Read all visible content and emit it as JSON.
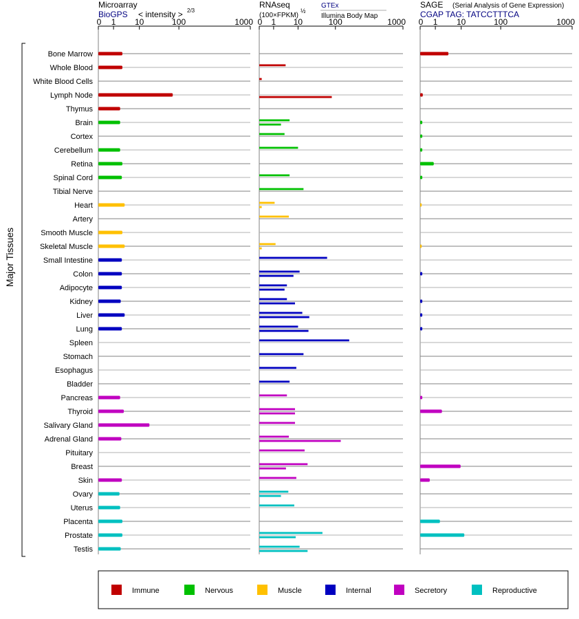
{
  "y_axis_title": "Major Tissues",
  "panels": [
    {
      "title": "Microarray",
      "subtitle": "BioGPS",
      "formula_prefix": "< intensity >",
      "formula_exp": "2/3",
      "ticks": [
        {
          "value": 0,
          "label": "0"
        },
        {
          "value": 1,
          "label": "1"
        },
        {
          "value": 10,
          "label": "10"
        },
        {
          "value": 100,
          "label": "100"
        },
        {
          "value": 1000,
          "label": "1000"
        }
      ]
    },
    {
      "title": "RNAseq",
      "subtitle": "(100×FPKM)",
      "formula_exp": "½",
      "source_1": "GTEx",
      "source_2": "Illumina Body Map",
      "ticks": [
        {
          "value": 0,
          "label": "0"
        },
        {
          "value": 1,
          "label": "1"
        },
        {
          "value": 10,
          "label": "10"
        },
        {
          "value": 100,
          "label": "100"
        },
        {
          "value": 1000,
          "label": "1000"
        }
      ]
    },
    {
      "title": "SAGE",
      "title_note": "(Serial Analysis of Gene Expression)",
      "subtitle": "CGAP TAG: TATCCTTTCA",
      "ticks": [
        {
          "value": 0,
          "label": "0"
        },
        {
          "value": 1,
          "label": "1"
        },
        {
          "value": 10,
          "label": "10"
        },
        {
          "value": 100,
          "label": "100"
        },
        {
          "value": 1000,
          "label": "1000"
        }
      ]
    }
  ],
  "colors": {
    "Immune": "#c00000",
    "Nervous": "#00c000",
    "Muscle": "#ffc000",
    "Internal": "#0000c0",
    "Secretory": "#c000c0",
    "Reproductive": "#00c0c0",
    "navy_text": "#000080",
    "grid": "#808080"
  },
  "legend": [
    {
      "label": "Immune",
      "color": "#c00000"
    },
    {
      "label": "Nervous",
      "color": "#00c000"
    },
    {
      "label": "Muscle",
      "color": "#ffc000"
    },
    {
      "label": "Internal",
      "color": "#0000c0"
    },
    {
      "label": "Secretory",
      "color": "#c000c0"
    },
    {
      "label": "Reproductive",
      "color": "#00c0c0"
    }
  ],
  "chart_data": {
    "type": "bar",
    "orientation": "horizontal",
    "x_scale": "log-like (0, 1, 10, 100, 1000)",
    "xlim": [
      0,
      1000
    ],
    "grid": true,
    "legend_position": "bottom",
    "tissues": [
      {
        "name": "Bone Marrow",
        "group": "Immune",
        "microarray": 2.2,
        "gtex": null,
        "ibm": null,
        "sage": 3.2
      },
      {
        "name": "Whole Blood",
        "group": "Immune",
        "microarray": 2.2,
        "gtex": 3.1,
        "ibm": null,
        "sage": null
      },
      {
        "name": "White Blood Cells",
        "group": "Immune",
        "microarray": null,
        "gtex": 0.03,
        "ibm": null,
        "sage": null
      },
      {
        "name": "Lymph Node",
        "group": "Immune",
        "microarray": 70,
        "gtex": null,
        "ibm": 80,
        "sage": 0.03
      },
      {
        "name": "Thymus",
        "group": "Immune",
        "microarray": 1.8,
        "gtex": null,
        "ibm": null,
        "sage": null
      },
      {
        "name": "Brain",
        "group": "Nervous",
        "microarray": 1.8,
        "gtex": 4.5,
        "ibm": 2.0,
        "sage": 0.02
      },
      {
        "name": "Cortex",
        "group": "Nervous",
        "microarray": null,
        "gtex": 2.8,
        "ibm": null,
        "sage": 0.02
      },
      {
        "name": "Cerebellum",
        "group": "Nervous",
        "microarray": 1.8,
        "gtex": 10,
        "ibm": null,
        "sage": 0.02
      },
      {
        "name": "Retina",
        "group": "Nervous",
        "microarray": 2.2,
        "gtex": null,
        "ibm": null,
        "sage": 0.8
      },
      {
        "name": "Spinal Cord",
        "group": "Nervous",
        "microarray": 2.1,
        "gtex": 4.5,
        "ibm": null,
        "sage": 0.02
      },
      {
        "name": "Tibial Nerve",
        "group": "Nervous",
        "microarray": null,
        "gtex": 14,
        "ibm": null,
        "sage": null
      },
      {
        "name": "Heart",
        "group": "Muscle",
        "microarray": 2.7,
        "gtex": 1.1,
        "ibm": 0.03,
        "sage": 0.01
      },
      {
        "name": "Artery",
        "group": "Muscle",
        "microarray": null,
        "gtex": 4.2,
        "ibm": null,
        "sage": null
      },
      {
        "name": "Smooth Muscle",
        "group": "Muscle",
        "microarray": 2.2,
        "gtex": null,
        "ibm": null,
        "sage": null
      },
      {
        "name": "Skeletal Muscle",
        "group": "Muscle",
        "microarray": 2.7,
        "gtex": 1.2,
        "ibm": 0.03,
        "sage": 0.01
      },
      {
        "name": "Small Intestine",
        "group": "Internal",
        "microarray": 2.1,
        "gtex": 60,
        "ibm": null,
        "sage": null
      },
      {
        "name": "Colon",
        "group": "Internal",
        "microarray": 2.1,
        "gtex": 11,
        "ibm": 6.5,
        "sage": 0.02
      },
      {
        "name": "Adipocyte",
        "group": "Internal",
        "microarray": 2.1,
        "gtex": 3.5,
        "ibm": 2.8,
        "sage": null
      },
      {
        "name": "Kidney",
        "group": "Internal",
        "microarray": 1.9,
        "gtex": 3.5,
        "ibm": 7.5,
        "sage": 0.02
      },
      {
        "name": "Liver",
        "group": "Internal",
        "microarray": 2.7,
        "gtex": 13,
        "ibm": 20,
        "sage": 0.02
      },
      {
        "name": "Lung",
        "group": "Internal",
        "microarray": 2.1,
        "gtex": 10,
        "ibm": 19,
        "sage": 0.02
      },
      {
        "name": "Spleen",
        "group": "Internal",
        "microarray": null,
        "gtex": 160,
        "ibm": null,
        "sage": null
      },
      {
        "name": "Stomach",
        "group": "Internal",
        "microarray": null,
        "gtex": 14,
        "ibm": null,
        "sage": null
      },
      {
        "name": "Esophagus",
        "group": "Internal",
        "microarray": null,
        "gtex": 8.5,
        "ibm": null,
        "sage": null
      },
      {
        "name": "Bladder",
        "group": "Internal",
        "microarray": null,
        "gtex": 4.5,
        "ibm": null,
        "sage": null
      },
      {
        "name": "Pancreas",
        "group": "Secretory",
        "microarray": 1.8,
        "gtex": 3.5,
        "ibm": null,
        "sage": 0.02
      },
      {
        "name": "Thyroid",
        "group": "Secretory",
        "microarray": 2.5,
        "gtex": 7.5,
        "ibm": 7.5,
        "sage": 1.8
      },
      {
        "name": "Salivary Gland",
        "group": "Secretory",
        "microarray": 18,
        "gtex": 7.5,
        "ibm": null,
        "sage": null
      },
      {
        "name": "Adrenal Gland",
        "group": "Secretory",
        "microarray": 2.0,
        "gtex": 4.2,
        "ibm": 120,
        "sage": null
      },
      {
        "name": "Pituitary",
        "group": "Secretory",
        "microarray": null,
        "gtex": 15,
        "ibm": null,
        "sage": null
      },
      {
        "name": "Breast",
        "group": "Secretory",
        "microarray": null,
        "gtex": 18,
        "ibm": 3.2,
        "sage": 9.5
      },
      {
        "name": "Skin",
        "group": "Secretory",
        "microarray": 2.1,
        "gtex": 8.5,
        "ibm": null,
        "sage": 0.4
      },
      {
        "name": "Ovary",
        "group": "Reproductive",
        "microarray": 1.7,
        "gtex": 4.0,
        "ibm": 2.0,
        "sage": null
      },
      {
        "name": "Uterus",
        "group": "Reproductive",
        "microarray": 1.8,
        "gtex": 7.0,
        "ibm": null,
        "sage": null
      },
      {
        "name": "Placenta",
        "group": "Reproductive",
        "microarray": 2.2,
        "gtex": null,
        "ibm": null,
        "sage": 1.5
      },
      {
        "name": "Prostate",
        "group": "Reproductive",
        "microarray": 2.2,
        "gtex": 45,
        "ibm": 8.0,
        "sage": 12
      },
      {
        "name": "Testis",
        "group": "Reproductive",
        "microarray": 1.9,
        "gtex": 11,
        "ibm": 18,
        "sage": null
      }
    ]
  }
}
